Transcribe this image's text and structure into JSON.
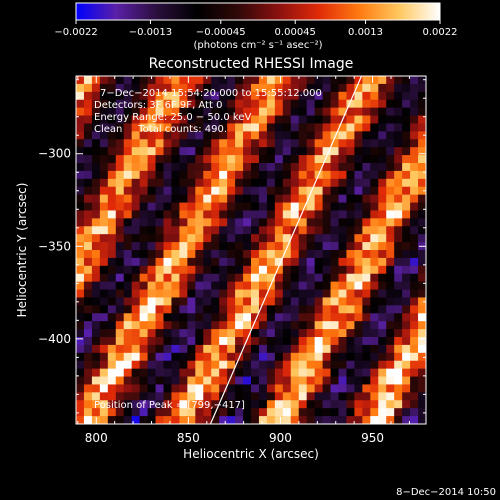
{
  "chart_data": {
    "type": "heatmap",
    "title": "Reconstructed RHESSI Image",
    "xlabel": "Heliocentric X (arcsec)",
    "ylabel": "Heliocentric Y (arcsec)",
    "xlim": [
      789,
      979
    ],
    "ylim": [
      -446,
      -258
    ],
    "x_ticks": [
      {
        "value": 800,
        "label": "800"
      },
      {
        "value": 850,
        "label": "850"
      },
      {
        "value": 900,
        "label": "900"
      },
      {
        "value": 950,
        "label": "950"
      }
    ],
    "y_ticks": [
      {
        "value": -300,
        "label": "−300"
      },
      {
        "value": -350,
        "label": "−350"
      },
      {
        "value": -400,
        "label": "−400"
      }
    ],
    "colorbar": {
      "range": [
        -0.0022,
        0.0022
      ],
      "ticks": [
        {
          "value": -0.0022,
          "label": "−0.0022"
        },
        {
          "value": -0.0013,
          "label": "−0.0013"
        },
        {
          "value": -0.00045,
          "label": "−0.00045"
        },
        {
          "value": 0.00045,
          "label": "0.00045"
        },
        {
          "value": 0.0013,
          "label": "0.0013"
        },
        {
          "value": 0.0022,
          "label": "0.0022"
        }
      ],
      "unit_label": "(photons cm⁻² s⁻¹ asec⁻²)"
    },
    "annotations": [
      "7−Dec−2014 15:54:20.000 to 15:55:12.000",
      "Detectors: 3F 6F 9F, Att 0",
      "Energy Range: 25.0 − 50.0 keV",
      "Clean     Total counts: 490.",
      "Position of Peak = [799,−417]"
    ],
    "limb_line": {
      "x": [
        862,
        944
      ],
      "y": [
        -446,
        -258
      ]
    },
    "timestamp": "8−Dec−2014 10:50",
    "colormap": [
      "#0000ff",
      "#5a20a6",
      "#2a0e3c",
      "#000000",
      "#300808",
      "#8a1010",
      "#e02a08",
      "#ff7a10",
      "#ffc860",
      "#ffffff"
    ]
  }
}
